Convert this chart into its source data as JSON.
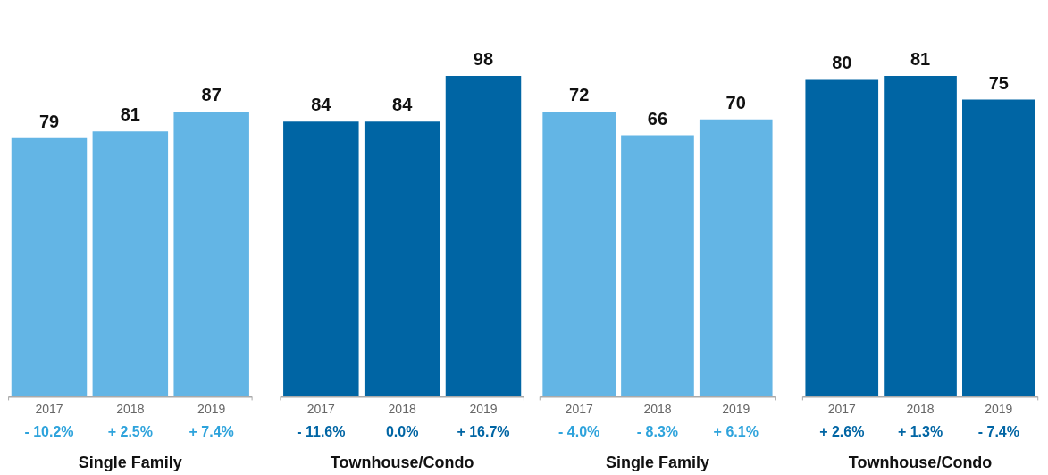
{
  "chart_data": [
    {
      "type": "bar",
      "categories": [
        "2017",
        "2018",
        "2019",
        "2017",
        "2018",
        "2019"
      ],
      "values": [
        79,
        81,
        87,
        84,
        84,
        98
      ],
      "colors": [
        "#63b5e5",
        "#63b5e5",
        "#63b5e5",
        "#0065a4",
        "#0065a4",
        "#0065a4"
      ],
      "data_labels": true,
      "annotations": [
        "- 10.2%",
        "+ 2.5%",
        "+ 7.4%",
        "- 11.6%",
        "0.0%",
        "+ 16.7%",
        "Single Family",
        "Townhouse/Condo"
      ]
    },
    {
      "type": "bar",
      "categories": [
        "2017",
        "2018",
        "2019",
        "2017",
        "2018",
        "2019"
      ],
      "values": [
        72,
        66,
        70,
        80,
        81,
        75
      ],
      "colors": [
        "#63b5e5",
        "#63b5e5",
        "#63b5e5",
        "#0065a4",
        "#0065a4",
        "#0065a4"
      ],
      "data_labels": true,
      "annotations": [
        "- 4.0%",
        "- 8.3%",
        "+ 6.1%",
        "+ 2.6%",
        "+ 1.3%",
        "- 7.4%",
        "Single Family",
        "Townhouse/Condo"
      ]
    }
  ]
}
